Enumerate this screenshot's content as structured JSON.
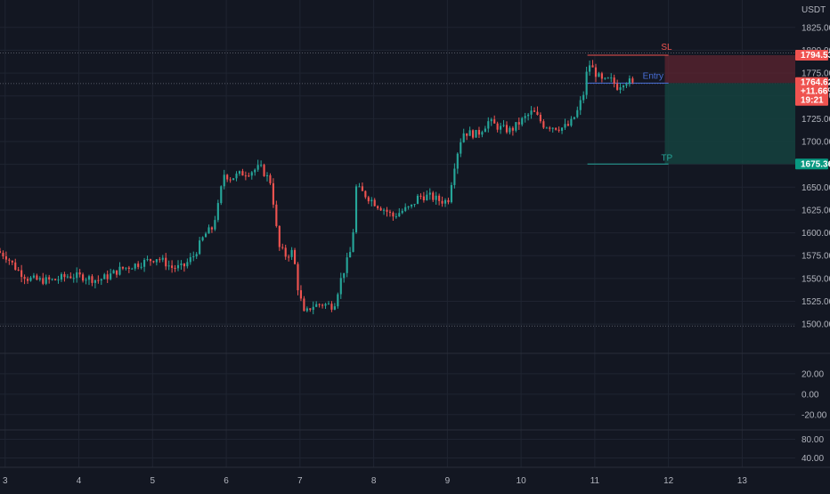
{
  "colors": {
    "background": "#131722",
    "grid": "#1f2431",
    "up": "#26a69a",
    "down": "#ef5350",
    "sl_zone": "#5e2430",
    "tp_zone": "#15423e",
    "entry_line": "#4a6fd8",
    "axis_text": "#b2b5be",
    "separator": "#2a2e39"
  },
  "chart_data": [
    {
      "type": "candlestick",
      "currency_label": "USDT",
      "y_ticks": [
        1500,
        1525,
        1550,
        1575,
        1600,
        1625,
        1650,
        1675,
        1700,
        1725,
        1750,
        1775,
        1800,
        1825
      ],
      "y_tick_labels": [
        "1500.00",
        "1525.00",
        "1550.00",
        "1575.00",
        "1600.00",
        "1625.00",
        "1650.00",
        "1675.00",
        "1700.00",
        "1725.00",
        "1750.00",
        "1775.00",
        "1800.00",
        "1825.00"
      ],
      "ylim": [
        1468,
        1855
      ],
      "x_ticks": [
        3,
        4,
        5,
        6,
        7,
        8,
        9,
        10,
        11,
        12,
        13
      ],
      "x_tick_labels": [
        "3",
        "4",
        "5",
        "6",
        "7",
        "8",
        "9",
        "10",
        "11",
        "12",
        "13"
      ],
      "xlim": [
        2.93,
        13.72
      ],
      "anchors": [
        [
          2.93,
          1580
        ],
        [
          3.05,
          1575
        ],
        [
          3.2,
          1560
        ],
        [
          3.35,
          1550
        ],
        [
          3.5,
          1548
        ],
        [
          3.7,
          1548
        ],
        [
          3.9,
          1553
        ],
        [
          4.1,
          1552
        ],
        [
          4.3,
          1548
        ],
        [
          4.45,
          1553
        ],
        [
          4.6,
          1560
        ],
        [
          4.8,
          1565
        ],
        [
          5.0,
          1570
        ],
        [
          5.1,
          1573
        ],
        [
          5.2,
          1568
        ],
        [
          5.3,
          1562
        ],
        [
          5.45,
          1562
        ],
        [
          5.6,
          1575
        ],
        [
          5.75,
          1598
        ],
        [
          5.85,
          1605
        ],
        [
          5.95,
          1635
        ],
        [
          6.0,
          1665
        ],
        [
          6.1,
          1660
        ],
        [
          6.25,
          1665
        ],
        [
          6.4,
          1668
        ],
        [
          6.5,
          1672
        ],
        [
          6.65,
          1655
        ],
        [
          6.75,
          1585
        ],
        [
          6.85,
          1575
        ],
        [
          6.95,
          1580
        ],
        [
          7.0,
          1545
        ],
        [
          7.1,
          1510
        ],
        [
          7.2,
          1520
        ],
        [
          7.35,
          1522
        ],
        [
          7.5,
          1520
        ],
        [
          7.6,
          1550
        ],
        [
          7.75,
          1585
        ],
        [
          7.8,
          1650
        ],
        [
          7.95,
          1640
        ],
        [
          8.1,
          1630
        ],
        [
          8.2,
          1625
        ],
        [
          8.3,
          1618
        ],
        [
          8.45,
          1625
        ],
        [
          8.55,
          1628
        ],
        [
          8.65,
          1640
        ],
        [
          8.8,
          1640
        ],
        [
          8.95,
          1635
        ],
        [
          9.05,
          1635
        ],
        [
          9.15,
          1680
        ],
        [
          9.25,
          1710
        ],
        [
          9.45,
          1708
        ],
        [
          9.6,
          1722
        ],
        [
          9.75,
          1715
        ],
        [
          9.9,
          1712
        ],
        [
          10.05,
          1723
        ],
        [
          10.2,
          1733
        ],
        [
          10.35,
          1718
        ],
        [
          10.5,
          1716
        ],
        [
          10.6,
          1715
        ],
        [
          10.7,
          1718
        ],
        [
          10.8,
          1732
        ],
        [
          10.9,
          1755
        ],
        [
          10.95,
          1787
        ],
        [
          11.05,
          1775
        ],
        [
          11.15,
          1765
        ],
        [
          11.25,
          1768
        ],
        [
          11.35,
          1760
        ],
        [
          11.45,
          1767
        ],
        [
          11.55,
          1764.62
        ]
      ],
      "last_price": 1764.62,
      "last_price_label": "1764.62",
      "change_label": "+11.66%",
      "countdown_label": "19:21",
      "position": {
        "x_start": 10.9,
        "x_end": 12.0,
        "entry": 1764.0,
        "stop_loss": 1794.53,
        "take_profit": 1675.36,
        "sl_text": "SL",
        "entry_text": "Entry",
        "tp_text": "TP",
        "sl_tag": "1794.53",
        "tp_tag": "1675.36"
      },
      "horizontal_lines": [
        1797,
        1763.5,
        1498
      ],
      "sub_panel_1": {
        "y_ticks": [
          20,
          0,
          -20
        ],
        "y_tick_labels": [
          "20.00",
          "0.00",
          "-20.00"
        ],
        "ylim": [
          -35,
          40
        ]
      },
      "sub_panel_2": {
        "y_ticks": [
          80,
          40
        ],
        "y_tick_labels": [
          "80.00",
          "40.00"
        ],
        "ylim": [
          20,
          100
        ]
      }
    }
  ]
}
